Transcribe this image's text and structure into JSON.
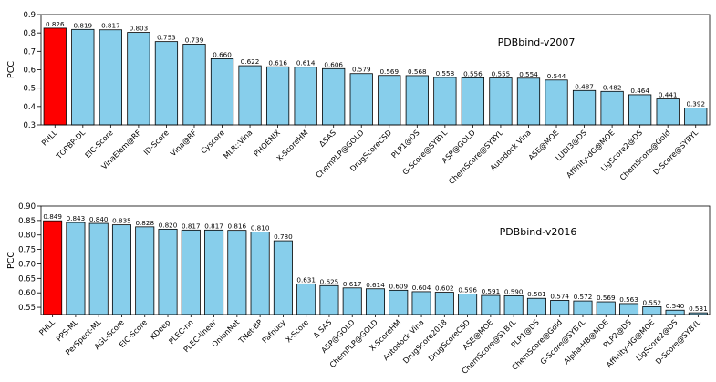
{
  "chart_data": [
    {
      "type": "bar",
      "title": "PDBbind-v2007",
      "xlabel": "",
      "ylabel": "PCC",
      "ylim": [
        0.3,
        0.9
      ],
      "yticks": [
        "0.3",
        "0.4",
        "0.5",
        "0.6",
        "0.7",
        "0.8",
        "0.9"
      ],
      "highlight_index": 0,
      "colors": {
        "highlight": "#ff0000",
        "bar": "#87ceeb",
        "edge": "#000000"
      },
      "categories": [
        "PHLL",
        "TOPBP-DL",
        "EIC-Score",
        "VinaElem@RF",
        "ID-Score",
        "Vina@RF",
        "Cyscore",
        "MLR::Vina",
        "PHOENIX",
        "X-ScoreHM",
        "ΔSAS",
        "ChemPLP@GOLD",
        "DrugScoreCSD",
        "PLP1@DS",
        "G-Score@SYBYL",
        "ASP@GOLD",
        "ChemScore@SYBYL",
        "Autodock Vina",
        "ASE@MOE",
        "LUDI3@DS",
        "Affinity-dG@MOE",
        "LigScore2@DS",
        "ChemScore@Gold",
        "D-Score@SYBYL"
      ],
      "values": [
        0.826,
        0.819,
        0.817,
        0.803,
        0.753,
        0.739,
        0.66,
        0.622,
        0.616,
        0.614,
        0.606,
        0.579,
        0.569,
        0.568,
        0.558,
        0.556,
        0.555,
        0.554,
        0.544,
        0.487,
        0.482,
        0.464,
        0.441,
        0.392
      ],
      "labels": [
        "0.826",
        "0.819",
        "0.817",
        "0.803",
        "0.753",
        "0.739",
        "0.660",
        "0.622",
        "0.616",
        "0.614",
        "0.606",
        "0.579",
        "0.569",
        "0.568",
        "0.558",
        "0.556",
        "0.555",
        "0.554",
        "0.544",
        "0.487",
        "0.482",
        "0.464",
        "0.441",
        "0.392"
      ]
    },
    {
      "type": "bar",
      "title": "PDBbind-v2016",
      "xlabel": "",
      "ylabel": "PCC",
      "ylim": [
        0.525,
        0.9
      ],
      "yticks": [
        "0.55",
        "0.60",
        "0.65",
        "0.70",
        "0.75",
        "0.80",
        "0.85",
        "0.90"
      ],
      "highlight_index": 0,
      "colors": {
        "highlight": "#ff0000",
        "bar": "#87ceeb",
        "edge": "#000000"
      },
      "categories": [
        "PHLL",
        "PPS-ML",
        "PerSpect-ML",
        "AGL-Score",
        "EIC-Score",
        "KDeep",
        "PLEC-nn",
        "PLEC-linear",
        "OnionNet",
        "TNet-BP",
        "Pafnucy",
        "X-Score",
        "Δ SAS",
        "ASP@GOLD",
        "ChemPLP@GOLD",
        "X-ScoreHM",
        "Autodock Vina",
        "DrugScore2018",
        "DrugScoreCSD",
        "ASE@MOE",
        "ChemScore@SYBYL",
        "PLP1@DS",
        "ChemScore@Gold",
        "G-Score@SYBYL",
        "Alpha-HB@MOE",
        "PLP2@DS",
        "Affinity-dG@MOE",
        "LigScore2@DS",
        "D-Score@SYBYL"
      ],
      "values": [
        0.849,
        0.843,
        0.84,
        0.835,
        0.828,
        0.82,
        0.817,
        0.817,
        0.816,
        0.81,
        0.78,
        0.631,
        0.625,
        0.617,
        0.614,
        0.609,
        0.604,
        0.602,
        0.596,
        0.591,
        0.59,
        0.581,
        0.574,
        0.572,
        0.569,
        0.563,
        0.552,
        0.54,
        0.531
      ],
      "labels": [
        "0.849",
        "0.843",
        "0.840",
        "0.835",
        "0.828",
        "0.820",
        "0.817",
        "0.817",
        "0.816",
        "0.810",
        "0.780",
        "0.631",
        "0.625",
        "0.617",
        "0.614",
        "0.609",
        "0.604",
        "0.602",
        "0.596",
        "0.591",
        "0.590",
        "0.581",
        "0.574",
        "0.572",
        "0.569",
        "0.563",
        "0.552",
        "0.540",
        "0.531"
      ]
    }
  ]
}
